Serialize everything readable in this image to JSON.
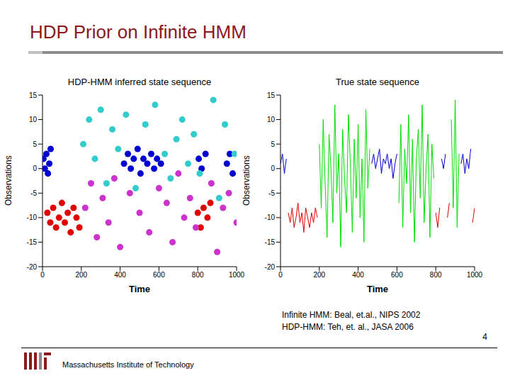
{
  "slide": {
    "title": "HDP Prior on Infinite HMM",
    "citations": [
      "Infinite HMM: Beal, et.al., NIPS 2002",
      "HDP-HMM: Teh, et. al., JASA 2006"
    ],
    "institution": "Massachusetts Institute of Technology",
    "page": 4
  },
  "chart_data": [
    {
      "type": "scatter",
      "title": "HDP-HMM inferred state sequence",
      "x_label": "Time",
      "y_label": "Observations",
      "xlim": [
        0,
        1000
      ],
      "xticks": [
        0,
        200,
        400,
        600,
        800,
        1000
      ],
      "ylim": [
        -20,
        15
      ],
      "yticks": [
        -20,
        -15,
        -10,
        -5,
        0,
        5,
        10,
        15
      ],
      "grid": false,
      "series": [
        {
          "color": "#0000d0",
          "marker": "circle",
          "x": [
            5,
            12,
            20,
            28,
            35,
            42,
            420,
            440,
            455,
            470,
            490,
            505,
            520,
            540,
            560,
            575,
            590,
            610,
            805,
            820,
            840,
            950,
            965,
            980
          ],
          "values": [
            2,
            0,
            3,
            -1,
            1,
            4,
            1,
            3,
            0,
            2,
            4,
            -1,
            2,
            1,
            3,
            0,
            2,
            1,
            2,
            0,
            3,
            1,
            3,
            -1
          ]
        },
        {
          "color": "#e00000",
          "marker": "circle",
          "x": [
            25,
            40,
            55,
            70,
            85,
            100,
            115,
            130,
            145,
            160,
            175,
            190,
            800,
            815,
            830,
            850,
            865
          ],
          "values": [
            -9,
            -11,
            -8,
            -12,
            -10,
            -7,
            -11,
            -9,
            -13,
            -8,
            -10,
            -12,
            -9,
            -12,
            -8,
            -10,
            -7
          ]
        },
        {
          "color": "#33cccc",
          "marker": "circle",
          "x": [
            210,
            240,
            270,
            300,
            330,
            360,
            390,
            430,
            480,
            530,
            580,
            630,
            660,
            690,
            720,
            750,
            780,
            810,
            880,
            910,
            940,
            990
          ],
          "values": [
            5,
            10,
            2,
            12,
            -3,
            8,
            4,
            11,
            -4,
            9,
            13,
            3,
            -2,
            6,
            10,
            1,
            7,
            -1,
            14,
            -6,
            9,
            3
          ]
        },
        {
          "color": "#cc33cc",
          "marker": "circle",
          "x": [
            220,
            250,
            280,
            310,
            340,
            370,
            400,
            450,
            500,
            550,
            600,
            640,
            670,
            700,
            730,
            760,
            790,
            870,
            900,
            930,
            960,
            1000
          ],
          "values": [
            -8,
            -3,
            -14,
            -6,
            -11,
            -2,
            -16,
            -5,
            -9,
            -13,
            -4,
            -7,
            -15,
            -1,
            -10,
            -6,
            -12,
            -3,
            -17,
            -8,
            -5,
            -11
          ]
        }
      ]
    },
    {
      "type": "line",
      "title": "True state sequence",
      "x_label": "Time",
      "y_label": "Observations",
      "xlim": [
        0,
        1000
      ],
      "xticks": [
        0,
        200,
        400,
        600,
        800,
        1000
      ],
      "ylim": [
        -20,
        15
      ],
      "yticks": [
        -20,
        -15,
        -10,
        -5,
        0,
        5,
        10,
        15
      ],
      "grid": false,
      "x": [
        0,
        10,
        20,
        30,
        40,
        50,
        60,
        70,
        80,
        90,
        100,
        110,
        120,
        130,
        140,
        150,
        160,
        170,
        180,
        190,
        200,
        210,
        220,
        230,
        240,
        250,
        260,
        270,
        280,
        290,
        300,
        310,
        320,
        330,
        340,
        350,
        360,
        370,
        380,
        390,
        400,
        410,
        420,
        430,
        440,
        450,
        460,
        470,
        480,
        490,
        500,
        510,
        520,
        530,
        540,
        550,
        560,
        570,
        580,
        590,
        600,
        610,
        620,
        630,
        640,
        650,
        660,
        670,
        680,
        690,
        700,
        710,
        720,
        730,
        740,
        750,
        760,
        770,
        780,
        790,
        800,
        810,
        820,
        830,
        840,
        850,
        860,
        870,
        880,
        890,
        900,
        910,
        920,
        930,
        940,
        950,
        960,
        970,
        980,
        990,
        1000
      ],
      "series": [
        {
          "color": "#0000d0",
          "values": [
            1,
            3,
            -1,
            2,
            null,
            null,
            null,
            null,
            null,
            null,
            null,
            null,
            null,
            null,
            null,
            null,
            null,
            null,
            null,
            null,
            null,
            null,
            null,
            null,
            null,
            null,
            null,
            null,
            null,
            null,
            null,
            null,
            null,
            null,
            null,
            null,
            null,
            null,
            null,
            null,
            null,
            null,
            null,
            null,
            null,
            null,
            null,
            1,
            3,
            0,
            2,
            4,
            -1,
            2,
            1,
            3,
            0,
            2,
            -2,
            1,
            3,
            null,
            null,
            null,
            null,
            null,
            null,
            null,
            null,
            null,
            null,
            null,
            null,
            null,
            null,
            null,
            null,
            null,
            null,
            null,
            null,
            null,
            null,
            2,
            0,
            3,
            null,
            null,
            null,
            null,
            null,
            null,
            null,
            1,
            3,
            -1,
            2,
            0,
            4,
            null,
            null
          ]
        },
        {
          "color": "#00dd00",
          "values": [
            null,
            null,
            null,
            null,
            null,
            null,
            null,
            null,
            null,
            null,
            null,
            null,
            null,
            null,
            null,
            null,
            null,
            null,
            null,
            null,
            5,
            -8,
            10,
            -3,
            -14,
            7,
            0,
            -11,
            13,
            -5,
            3,
            -16,
            8,
            -2,
            -9,
            11,
            1,
            -13,
            6,
            -6,
            9,
            -10,
            2,
            -15,
            12,
            -4,
            4,
            null,
            null,
            null,
            null,
            null,
            null,
            null,
            null,
            null,
            null,
            null,
            null,
            null,
            null,
            -7,
            9,
            -12,
            4,
            -3,
            11,
            -9,
            6,
            -15,
            2,
            8,
            -6,
            13,
            -11,
            0,
            7,
            -14,
            5,
            -2,
            null,
            null,
            null,
            null,
            null,
            null,
            null,
            null,
            10,
            -8,
            14,
            -12,
            3,
            null,
            null,
            null,
            null,
            null,
            null,
            null,
            null
          ]
        },
        {
          "color": "#e00000",
          "values": [
            null,
            null,
            null,
            null,
            -9,
            -11,
            -8,
            -12,
            -10,
            -7,
            -11,
            -9,
            -13,
            -8,
            -10,
            -12,
            -9,
            -11,
            -8,
            -10,
            null,
            null,
            null,
            null,
            null,
            null,
            null,
            null,
            null,
            null,
            null,
            null,
            null,
            null,
            null,
            null,
            null,
            null,
            null,
            null,
            null,
            null,
            null,
            null,
            null,
            null,
            null,
            null,
            null,
            null,
            null,
            null,
            null,
            null,
            null,
            null,
            null,
            null,
            null,
            null,
            null,
            null,
            null,
            null,
            null,
            null,
            null,
            null,
            null,
            null,
            null,
            null,
            null,
            null,
            null,
            null,
            null,
            null,
            null,
            null,
            -9,
            -12,
            -8,
            null,
            null,
            null,
            -10,
            -7,
            null,
            null,
            null,
            null,
            null,
            null,
            null,
            null,
            null,
            null,
            null,
            -11,
            -8
          ]
        }
      ]
    }
  ]
}
